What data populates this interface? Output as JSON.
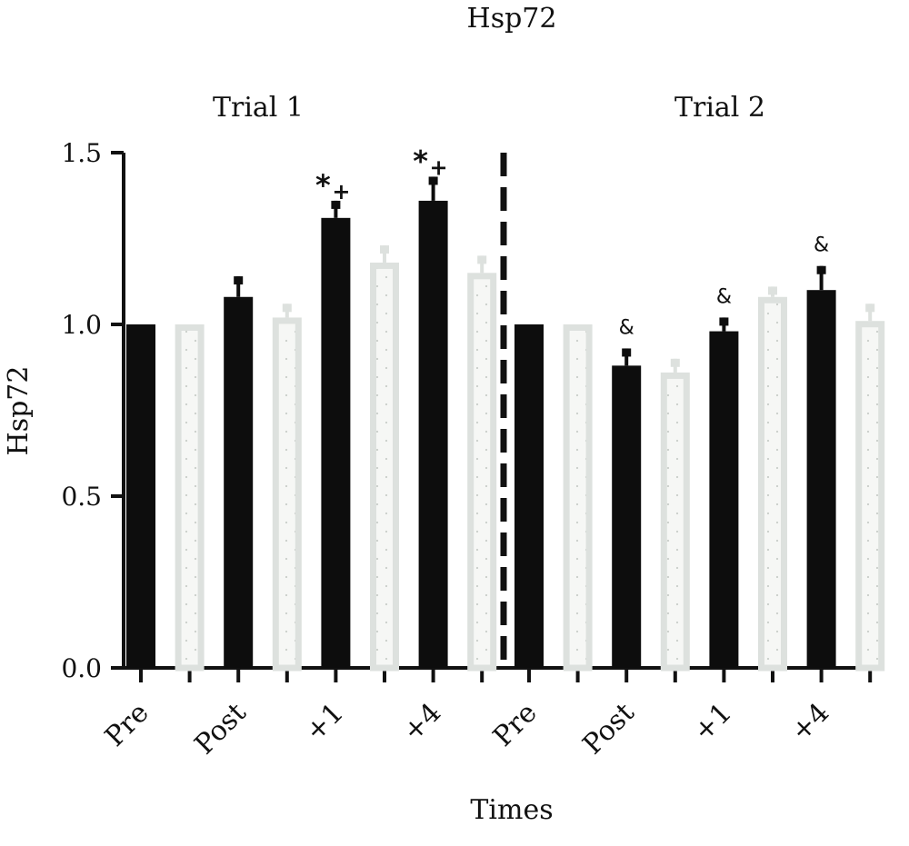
{
  "chart_data": {
    "type": "bar",
    "title": "Hsp72",
    "xlabel": "Times",
    "ylabel": "Hsp72",
    "ylim": [
      0,
      1.5
    ],
    "yticks": [
      "0.0",
      "0.5",
      "1.0",
      "1.5"
    ],
    "grid": false,
    "legend": "none",
    "groups": [
      {
        "label": "Trial 1",
        "tick_labels": [
          "Pre",
          "Post",
          "+1",
          "+4"
        ],
        "bars": [
          {
            "value": 1.0,
            "err": 0.0,
            "style": "solid",
            "annotation": ""
          },
          {
            "value": 1.0,
            "err": 0.0,
            "style": "dotted",
            "annotation": ""
          },
          {
            "value": 1.08,
            "err": 0.06,
            "style": "solid",
            "annotation": ""
          },
          {
            "value": 1.02,
            "err": 0.04,
            "style": "dotted",
            "annotation": ""
          },
          {
            "value": 1.31,
            "err": 0.05,
            "style": "solid",
            "annotation": "*",
            "annotation2": "+"
          },
          {
            "value": 1.18,
            "err": 0.05,
            "style": "dotted",
            "annotation": ""
          },
          {
            "value": 1.36,
            "err": 0.07,
            "style": "solid",
            "annotation": "*",
            "annotation2": "+"
          },
          {
            "value": 1.15,
            "err": 0.05,
            "style": "dotted",
            "annotation": ""
          }
        ]
      },
      {
        "label": "Trial 2",
        "tick_labels": [
          "Pre",
          "Post",
          "+1",
          "+4"
        ],
        "bars": [
          {
            "value": 1.0,
            "err": 0.0,
            "style": "solid",
            "annotation": ""
          },
          {
            "value": 1.0,
            "err": 0.0,
            "style": "dotted",
            "annotation": ""
          },
          {
            "value": 0.88,
            "err": 0.05,
            "style": "solid",
            "annotation": "&"
          },
          {
            "value": 0.86,
            "err": 0.04,
            "style": "dotted",
            "annotation": ""
          },
          {
            "value": 0.98,
            "err": 0.04,
            "style": "solid",
            "annotation": "&"
          },
          {
            "value": 1.08,
            "err": 0.03,
            "style": "dotted",
            "annotation": ""
          },
          {
            "value": 1.1,
            "err": 0.07,
            "style": "solid",
            "annotation": "&"
          },
          {
            "value": 1.01,
            "err": 0.05,
            "style": "dotted",
            "annotation": ""
          }
        ]
      }
    ],
    "colors": {
      "solid": "#0d0d0d",
      "dotted_stroke": "#dde1de",
      "dotted_fill": "#f6f7f5",
      "dots": "#c9cec9"
    }
  }
}
